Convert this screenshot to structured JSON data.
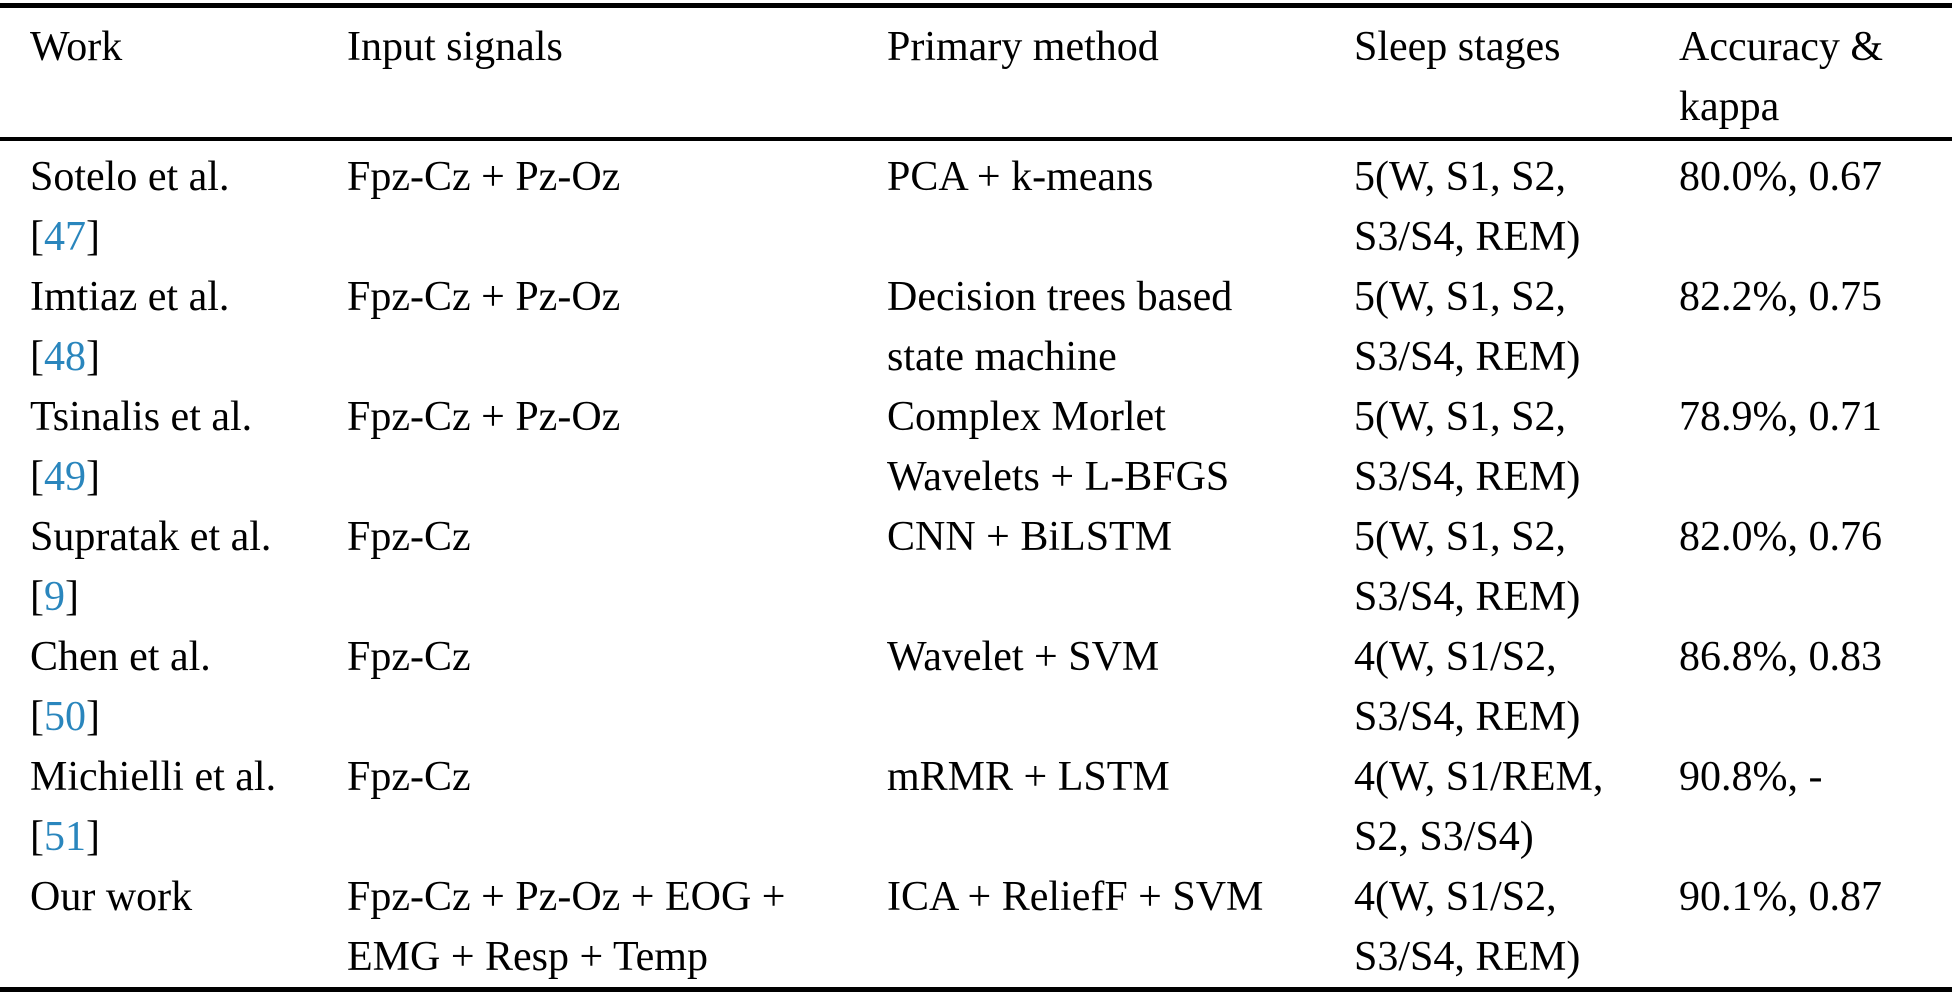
{
  "page": {
    "colors": {
      "text": "#000000",
      "citation_link": "#2a86bd",
      "rule": "#000000",
      "background": "#ffffff"
    }
  },
  "table": {
    "headers": [
      {
        "id": "work",
        "label": "Work"
      },
      {
        "id": "input",
        "label": "Input signals"
      },
      {
        "id": "method",
        "label": "Primary method"
      },
      {
        "id": "stages",
        "label": "Sleep stages"
      },
      {
        "id": "accuracy",
        "label": "Accuracy & kappa"
      }
    ],
    "rows": [
      {
        "work": "Sotelo et al.",
        "cite_open": "[",
        "cite": "47",
        "cite_close": "]",
        "input": [
          "Fpz-Cz + Pz-Oz",
          ""
        ],
        "method": [
          "PCA + k-means",
          ""
        ],
        "stages": [
          "5(W, S1, S2,",
          "S3/S4, REM)"
        ],
        "accuracy": "80.0%, 0.67"
      },
      {
        "work": "Imtiaz et al.",
        "cite_open": "[",
        "cite": "48",
        "cite_close": "]",
        "input": [
          "Fpz-Cz + Pz-Oz",
          ""
        ],
        "method": [
          "Decision trees based",
          "state machine"
        ],
        "stages": [
          "5(W, S1, S2,",
          "S3/S4, REM)"
        ],
        "accuracy": "82.2%, 0.75"
      },
      {
        "work": "Tsinalis et al.",
        "cite_open": "[",
        "cite": "49",
        "cite_close": "]",
        "input": [
          "Fpz-Cz + Pz-Oz",
          ""
        ],
        "method": [
          "Complex Morlet",
          "Wavelets + L-BFGS"
        ],
        "stages": [
          "5(W, S1, S2,",
          "S3/S4, REM)"
        ],
        "accuracy": "78.9%, 0.71"
      },
      {
        "work": "Supratak et al.",
        "cite_open": "[",
        "cite": "9",
        "cite_close": "]",
        "input": [
          "Fpz-Cz",
          ""
        ],
        "method": [
          "CNN + BiLSTM",
          ""
        ],
        "stages": [
          "5(W, S1, S2,",
          "S3/S4, REM)"
        ],
        "accuracy": "82.0%, 0.76"
      },
      {
        "work": "Chen et al.",
        "cite_open": "[",
        "cite": "50",
        "cite_close": "]",
        "input": [
          "Fpz-Cz",
          ""
        ],
        "method": [
          "Wavelet + SVM",
          ""
        ],
        "stages": [
          "4(W, S1/S2,",
          "S3/S4, REM)"
        ],
        "accuracy": "86.8%, 0.83"
      },
      {
        "work": "Michielli et al.",
        "cite_open": "[",
        "cite": "51",
        "cite_close": "]",
        "input": [
          "Fpz-Cz",
          ""
        ],
        "method": [
          "mRMR + LSTM",
          ""
        ],
        "stages": [
          "4(W, S1/REM,",
          "S2, S3/S4)"
        ],
        "accuracy": "90.8%, -"
      },
      {
        "work": "Our work",
        "cite_open": "",
        "cite": "",
        "cite_close": "",
        "input": [
          "Fpz-Cz + Pz-Oz + EOG +",
          "EMG + Resp + Temp"
        ],
        "method": [
          "ICA + ReliefF + SVM",
          ""
        ],
        "stages": [
          "4(W, S1/S2,",
          "S3/S4, REM)"
        ],
        "accuracy": "90.1%, 0.87"
      }
    ]
  }
}
